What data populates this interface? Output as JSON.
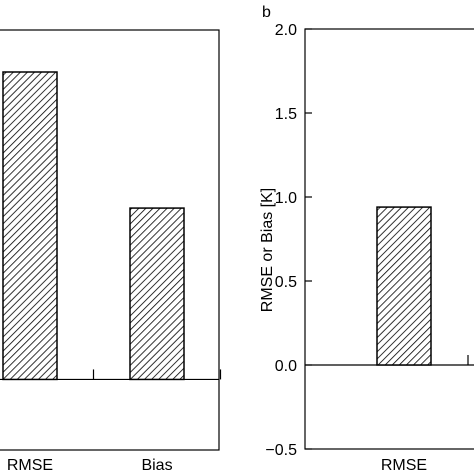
{
  "chart_data": [
    {
      "type": "bar",
      "categories": [
        "RMSE",
        "Bias"
      ],
      "values": [
        1.83,
        1.02
      ],
      "color": "#ffffff",
      "ylim": [
        -0.42,
        2.08
      ]
    },
    {
      "type": "bar",
      "panel_label": "b",
      "ylabel": "RMSE or Bias [K]",
      "categories": [
        "RMSE"
      ],
      "values": [
        0.94
      ],
      "color": "#ffffff",
      "ylim": [
        -0.5,
        2.0
      ],
      "yticks": [
        {
          "value": 2.0,
          "label": "2.0"
        },
        {
          "value": 1.5,
          "label": "1.5"
        },
        {
          "value": 1.0,
          "label": "1.0"
        },
        {
          "value": 0.5,
          "label": "0.5"
        },
        {
          "value": 0.0,
          "label": "0.0"
        },
        {
          "value": -0.5,
          "label": "−0.5"
        }
      ]
    }
  ]
}
